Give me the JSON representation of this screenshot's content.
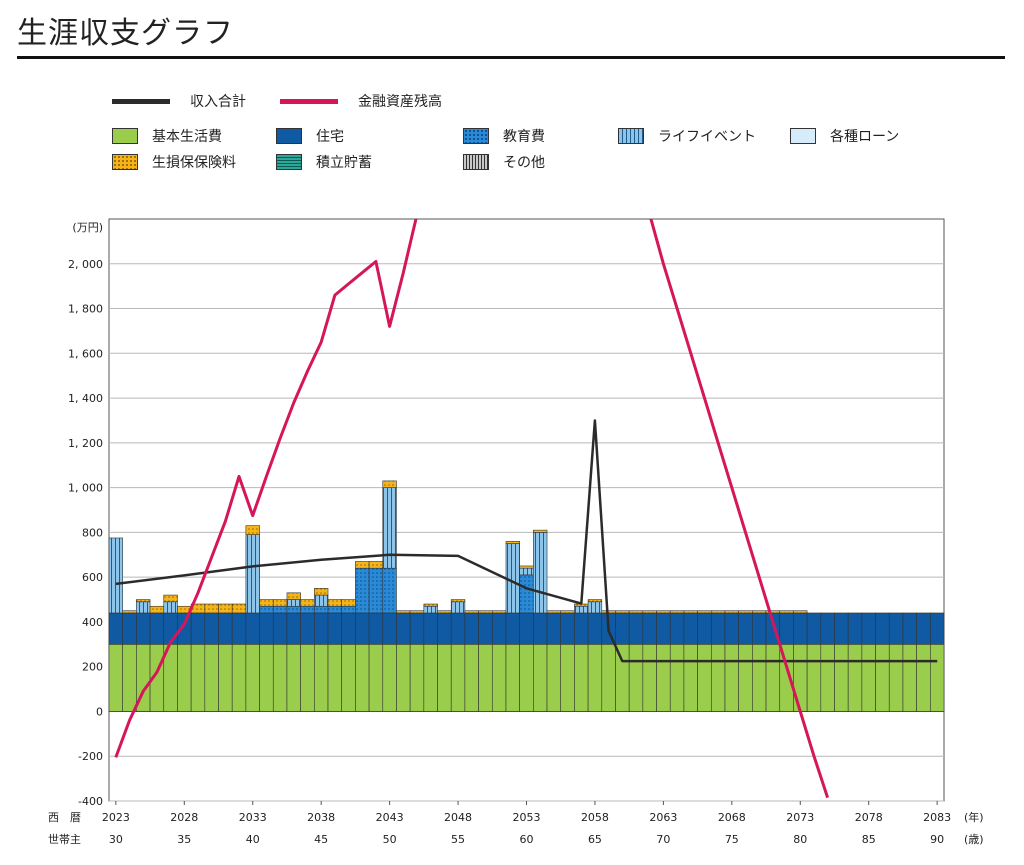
{
  "page_title": "生涯収支グラフ",
  "legend": {
    "lines": [
      {
        "label": "収入合計",
        "color": "#2b2b2b"
      },
      {
        "label": "金融資産残高",
        "color": "#d6165a"
      }
    ],
    "bars": [
      {
        "label": "基本生活費",
        "color": "#9acd4c",
        "pattern": "solid"
      },
      {
        "label": "住宅",
        "color": "#0f5aa3",
        "pattern": "solid"
      },
      {
        "label": "教育費",
        "color": "#2a8ad6",
        "pattern": "dots"
      },
      {
        "label": "ライフイベント",
        "color": "#8cc4ea",
        "pattern": "vstripes"
      },
      {
        "label": "各種ローン",
        "color": "#d6ecfb",
        "pattern": "solid"
      },
      {
        "label": "生損保保険料",
        "color": "#f4b41a",
        "pattern": "dots"
      },
      {
        "label": "積立貯蓄",
        "color": "#2aa89a",
        "pattern": "hstripes"
      },
      {
        "label": "その他",
        "color": "#9a9a9a",
        "pattern": "vstripes"
      }
    ]
  },
  "chart_data": {
    "type": "bar",
    "y_unit": "(万円)",
    "ylim": [
      -400,
      2200
    ],
    "y_ticks": [
      "-400",
      "-200",
      "0",
      "200",
      "400",
      "600",
      "800",
      "1, 000",
      "1, 200",
      "1, 400",
      "1, 600",
      "1, 800",
      "2, 000"
    ],
    "x_row_label": "西　暦",
    "x_row2_label": "世帯主",
    "x_unit": "(年)",
    "x_row2_unit": "(歳)",
    "x_tick_years": [
      "2023",
      "2028",
      "2033",
      "2038",
      "2043",
      "2048",
      "2053",
      "2058",
      "2063",
      "2068",
      "2073",
      "2078",
      "2083"
    ],
    "x_tick_ages": [
      "30",
      "35",
      "40",
      "45",
      "50",
      "55",
      "60",
      "65",
      "70",
      "75",
      "80",
      "85",
      "90"
    ],
    "years": [
      2023,
      2024,
      2025,
      2026,
      2027,
      2028,
      2029,
      2030,
      2031,
      2032,
      2033,
      2034,
      2035,
      2036,
      2037,
      2038,
      2039,
      2040,
      2041,
      2042,
      2043,
      2044,
      2045,
      2046,
      2047,
      2048,
      2049,
      2050,
      2051,
      2052,
      2053,
      2054,
      2055,
      2056,
      2057,
      2058,
      2059,
      2060,
      2061,
      2062,
      2063,
      2064,
      2065,
      2066,
      2067,
      2068,
      2069,
      2070,
      2071,
      2072,
      2073,
      2074,
      2075,
      2076,
      2077,
      2078,
      2079,
      2080,
      2081,
      2082,
      2083
    ],
    "series": [
      {
        "name": "基本生活費",
        "values": [
          300,
          300,
          300,
          300,
          300,
          300,
          300,
          300,
          300,
          300,
          300,
          300,
          300,
          300,
          300,
          300,
          300,
          300,
          300,
          300,
          300,
          300,
          300,
          300,
          300,
          300,
          300,
          300,
          300,
          300,
          300,
          300,
          300,
          300,
          300,
          300,
          300,
          300,
          300,
          300,
          300,
          300,
          300,
          300,
          300,
          300,
          300,
          300,
          300,
          300,
          300,
          300,
          300,
          300,
          300,
          300,
          300,
          300,
          300,
          300,
          300
        ]
      },
      {
        "name": "住宅",
        "values": [
          140,
          140,
          140,
          140,
          140,
          140,
          140,
          140,
          140,
          140,
          140,
          140,
          140,
          140,
          140,
          140,
          140,
          140,
          140,
          140,
          140,
          140,
          140,
          140,
          140,
          140,
          140,
          140,
          140,
          140,
          140,
          140,
          140,
          140,
          140,
          140,
          140,
          140,
          140,
          140,
          140,
          140,
          140,
          140,
          140,
          140,
          140,
          140,
          140,
          140,
          140,
          140,
          140,
          140,
          140,
          140,
          140,
          140,
          140,
          140,
          140
        ]
      },
      {
        "name": "教育費",
        "values": [
          0,
          0,
          0,
          0,
          0,
          0,
          0,
          0,
          0,
          0,
          0,
          30,
          30,
          30,
          30,
          30,
          30,
          30,
          200,
          200,
          200,
          0,
          0,
          0,
          0,
          0,
          0,
          0,
          0,
          0,
          170,
          0,
          0,
          0,
          0,
          0,
          0,
          0,
          0,
          0,
          0,
          0,
          0,
          0,
          0,
          0,
          0,
          0,
          0,
          0,
          0,
          0,
          0,
          0,
          0,
          0,
          0,
          0,
          0,
          0,
          0
        ]
      },
      {
        "name": "ライフイベント",
        "values": [
          335,
          0,
          50,
          0,
          50,
          0,
          0,
          0,
          0,
          0,
          350,
          0,
          0,
          30,
          0,
          50,
          0,
          0,
          0,
          0,
          360,
          0,
          0,
          30,
          0,
          50,
          0,
          0,
          0,
          310,
          30,
          360,
          0,
          0,
          30,
          50,
          0,
          0,
          0,
          0,
          0,
          0,
          0,
          0,
          0,
          0,
          0,
          0,
          0,
          0,
          0,
          0,
          0,
          0,
          0,
          0,
          0,
          0,
          0,
          0,
          0
        ]
      },
      {
        "name": "各種ローン",
        "values": [
          0,
          0,
          0,
          0,
          0,
          0,
          0,
          0,
          0,
          0,
          0,
          0,
          0,
          0,
          0,
          0,
          0,
          0,
          0,
          0,
          0,
          0,
          0,
          0,
          0,
          0,
          0,
          0,
          0,
          0,
          0,
          0,
          0,
          0,
          0,
          0,
          0,
          0,
          0,
          0,
          0,
          0,
          0,
          0,
          0,
          0,
          0,
          0,
          0,
          0,
          0,
          0,
          0,
          0,
          0,
          0,
          0,
          0,
          0,
          0,
          0
        ]
      },
      {
        "name": "生損保保険料",
        "values": [
          0,
          10,
          10,
          30,
          30,
          30,
          40,
          40,
          40,
          40,
          40,
          30,
          30,
          30,
          30,
          30,
          30,
          30,
          30,
          30,
          30,
          10,
          10,
          10,
          10,
          10,
          10,
          10,
          10,
          10,
          10,
          10,
          10,
          10,
          10,
          10,
          10,
          10,
          10,
          10,
          10,
          10,
          10,
          10,
          10,
          10,
          10,
          10,
          10,
          10,
          10,
          0,
          0,
          0,
          0,
          0,
          0,
          0,
          0,
          0,
          0
        ]
      },
      {
        "name": "積立貯蓄",
        "values": [
          0,
          0,
          0,
          0,
          0,
          0,
          0,
          0,
          0,
          0,
          0,
          0,
          0,
          0,
          0,
          0,
          0,
          0,
          0,
          0,
          0,
          0,
          0,
          0,
          0,
          0,
          0,
          0,
          0,
          0,
          0,
          0,
          0,
          0,
          0,
          0,
          0,
          0,
          0,
          0,
          0,
          0,
          0,
          0,
          0,
          0,
          0,
          0,
          0,
          0,
          0,
          0,
          0,
          0,
          0,
          0,
          0,
          0,
          0,
          0,
          0
        ]
      },
      {
        "name": "その他",
        "values": [
          0,
          0,
          0,
          0,
          0,
          0,
          0,
          0,
          0,
          0,
          0,
          0,
          0,
          0,
          0,
          0,
          0,
          0,
          0,
          0,
          0,
          0,
          0,
          0,
          0,
          0,
          0,
          0,
          0,
          0,
          0,
          0,
          0,
          0,
          0,
          0,
          0,
          0,
          0,
          0,
          0,
          0,
          0,
          0,
          0,
          0,
          0,
          0,
          0,
          0,
          0,
          0,
          0,
          0,
          0,
          0,
          0,
          0,
          0,
          0,
          0
        ]
      }
    ],
    "lines": [
      {
        "name": "収入合計",
        "points": [
          [
            2023,
            570
          ],
          [
            2028,
            608
          ],
          [
            2033,
            648
          ],
          [
            2038,
            678
          ],
          [
            2043,
            700
          ],
          [
            2048,
            695
          ],
          [
            2053,
            550
          ],
          [
            2057,
            482
          ],
          [
            2058,
            1300
          ],
          [
            2059,
            360
          ],
          [
            2060,
            225
          ],
          [
            2083,
            225
          ]
        ]
      },
      {
        "name": "金融資産残高",
        "points": [
          [
            2023,
            -205
          ],
          [
            2024,
            -40
          ],
          [
            2025,
            90
          ],
          [
            2026,
            175
          ],
          [
            2027,
            310
          ],
          [
            2028,
            390
          ],
          [
            2029,
            530
          ],
          [
            2030,
            690
          ],
          [
            2031,
            850
          ],
          [
            2032,
            1050
          ],
          [
            2033,
            875
          ],
          [
            2034,
            1050
          ],
          [
            2035,
            1220
          ],
          [
            2036,
            1380
          ],
          [
            2037,
            1520
          ],
          [
            2038,
            1650
          ],
          [
            2039,
            1860
          ],
          [
            2040,
            1910
          ],
          [
            2041,
            1960
          ],
          [
            2042,
            2010
          ],
          [
            2043,
            1720
          ],
          [
            2044,
            1960
          ],
          [
            2045,
            2220
          ],
          [
            2062,
            2220
          ],
          [
            2063,
            2000
          ],
          [
            2064,
            1800
          ],
          [
            2065,
            1600
          ],
          [
            2066,
            1400
          ],
          [
            2067,
            1200
          ],
          [
            2068,
            1000
          ],
          [
            2069,
            800
          ],
          [
            2070,
            600
          ],
          [
            2071,
            400
          ],
          [
            2072,
            200
          ],
          [
            2073,
            0
          ],
          [
            2074,
            -200
          ],
          [
            2075,
            -385
          ]
        ]
      }
    ]
  }
}
